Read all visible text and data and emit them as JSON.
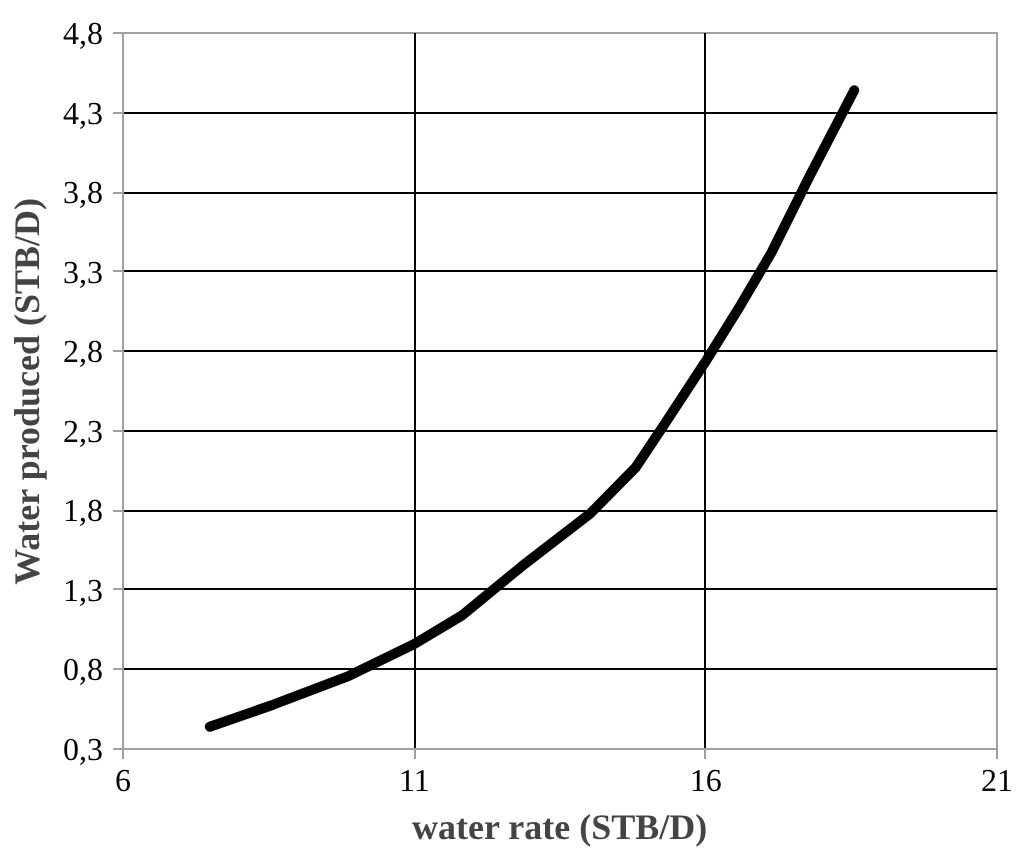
{
  "chart_data": {
    "type": "line",
    "xlabel": "water rate (STB/D)",
    "ylabel": "Water produced (STB/D)",
    "x": [
      7.49,
      8.59,
      9.88,
      11.0,
      11.82,
      12.85,
      14.02,
      14.8,
      15.31,
      15.99,
      16.6,
      17.13,
      17.77,
      18.55
    ],
    "series": [
      {
        "color": "#000000",
        "values": [
          0.44,
          0.58,
          0.76,
          0.96,
          1.14,
          1.45,
          1.78,
          2.07,
          2.35,
          2.73,
          3.09,
          3.42,
          3.89,
          4.44
        ]
      }
    ],
    "xlim": [
      6,
      21
    ],
    "xticks": [
      6,
      11,
      16,
      21
    ],
    "ylim": [
      0.3,
      4.8
    ],
    "yticks": [
      {
        "value": 0.3,
        "label": "0,3"
      },
      {
        "value": 0.8,
        "label": "0,8"
      },
      {
        "value": 1.3,
        "label": "1,3"
      },
      {
        "value": 1.8,
        "label": "1,8"
      },
      {
        "value": 2.3,
        "label": "2,3"
      },
      {
        "value": 2.8,
        "label": "2,8"
      },
      {
        "value": 3.3,
        "label": "3,3"
      },
      {
        "value": 3.8,
        "label": "3,8"
      },
      {
        "value": 4.3,
        "label": "4,3"
      },
      {
        "value": 4.8,
        "label": "4,8"
      }
    ],
    "grid": true,
    "line_style": "solid",
    "marker": "none"
  }
}
